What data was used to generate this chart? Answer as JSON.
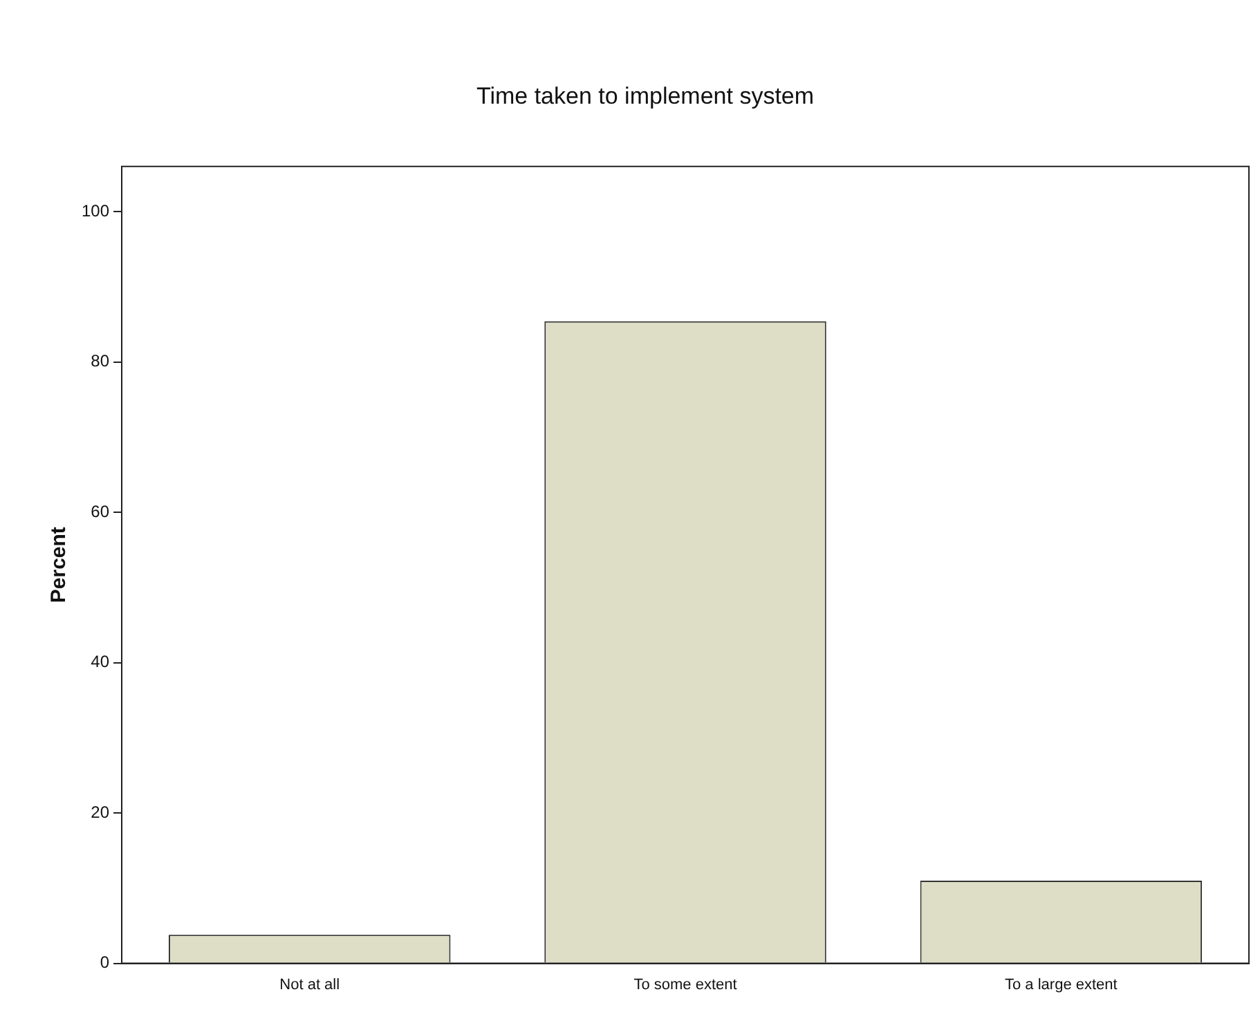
{
  "chart_data": {
    "type": "bar",
    "title": "Time taken to implement system",
    "ylabel": "Percent",
    "categories": [
      "Not at all",
      "To some extent",
      "To a large extent"
    ],
    "values": [
      3.8,
      85.4,
      11.0
    ],
    "color": "#deddc6",
    "ylim": [
      0,
      106
    ],
    "yticks": [
      0,
      20,
      40,
      60,
      80,
      100
    ],
    "grid": false,
    "legend": false
  }
}
